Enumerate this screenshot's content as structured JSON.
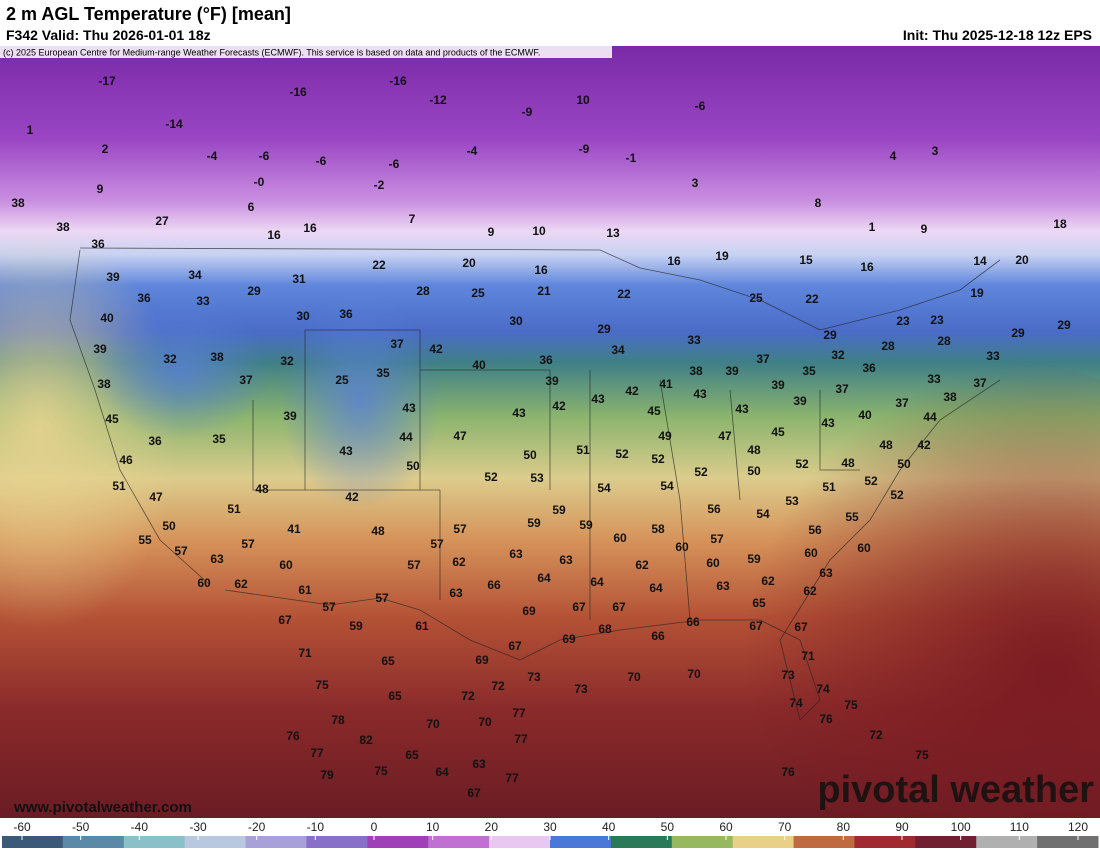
{
  "header": {
    "title": "2 m AGL Temperature (°F) [mean]",
    "valid": "F342 Valid: Thu 2026-01-01 18z",
    "init": "Init: Thu 2025-12-18 12z EPS",
    "credit": "(c) 2025 European Centre for Medium-range Weather Forecasts (ECMWF). This service is based on data and products of the ECMWF."
  },
  "footer": {
    "site": "www.pivotalweather.com",
    "logo": "pivotal weather"
  },
  "colorbar": {
    "ticks": [
      -60,
      -50,
      -40,
      -30,
      -20,
      -10,
      0,
      10,
      20,
      30,
      40,
      50,
      60,
      70,
      80,
      90,
      100,
      110,
      120
    ],
    "colors": [
      "#3b5a7a",
      "#5a8aa8",
      "#8ac0c8",
      "#b8c8e0",
      "#a8a0d8",
      "#8870c8",
      "#a040b8",
      "#c070d0",
      "#e8c8f0",
      "#4a78d8",
      "#2a7a5a",
      "#98b860",
      "#e8d088",
      "#c06a40",
      "#a02a30",
      "#702030",
      "#b0b0b0",
      "#707070"
    ]
  },
  "map_labels": [
    -17,
    -16,
    -16,
    -12,
    10,
    -9,
    -6,
    -14,
    1,
    2,
    -4,
    -6,
    -6,
    -6,
    -4,
    -9,
    -1,
    4,
    3,
    9,
    "-0",
    -2,
    3,
    6,
    7,
    8,
    27,
    16,
    16,
    9,
    10,
    13,
    1,
    9,
    18,
    38,
    38,
    36,
    39,
    34,
    22,
    20,
    16,
    16,
    19,
    15,
    16,
    14,
    20,
    36,
    33,
    29,
    31,
    28,
    25,
    21,
    22,
    25,
    22,
    19,
    40,
    30,
    36,
    30,
    29,
    23,
    23,
    29,
    29,
    39,
    32,
    38,
    32,
    37,
    42,
    36,
    34,
    33,
    29,
    28,
    28,
    33,
    38,
    37,
    25,
    35,
    40,
    39,
    42,
    41,
    38,
    39,
    37,
    32,
    35,
    36,
    39,
    37,
    33,
    37,
    43,
    45,
    39,
    43,
    43,
    42,
    43,
    45,
    43,
    39,
    40,
    37,
    38,
    44,
    36,
    35,
    44,
    47,
    49,
    47,
    45,
    43,
    46,
    43,
    50,
    50,
    51,
    52,
    52,
    48,
    48,
    42,
    51,
    52,
    53,
    52,
    50,
    52,
    48,
    50,
    47,
    48,
    42,
    54,
    54,
    51,
    52,
    52,
    51,
    53,
    56,
    54,
    50,
    41,
    48,
    57,
    59,
    59,
    59,
    58,
    55,
    56,
    55,
    57,
    57,
    60,
    57,
    60,
    60,
    57,
    63,
    60,
    62,
    63,
    63,
    59,
    60,
    60,
    57,
    63,
    60,
    62,
    61,
    66,
    64,
    64,
    62,
    64,
    63,
    62,
    57,
    57,
    63,
    65,
    62,
    67,
    59,
    61,
    69,
    67,
    67,
    67,
    67,
    68,
    66,
    66,
    69,
    67,
    71,
    65,
    69,
    71,
    75,
    65,
    72,
    72,
    73,
    73,
    70,
    70,
    73,
    74,
    78,
    70,
    70,
    77,
    74,
    76,
    75,
    76,
    82,
    77,
    72,
    77,
    65,
    63,
    75,
    79,
    75,
    64,
    77,
    76,
    67
  ]
}
